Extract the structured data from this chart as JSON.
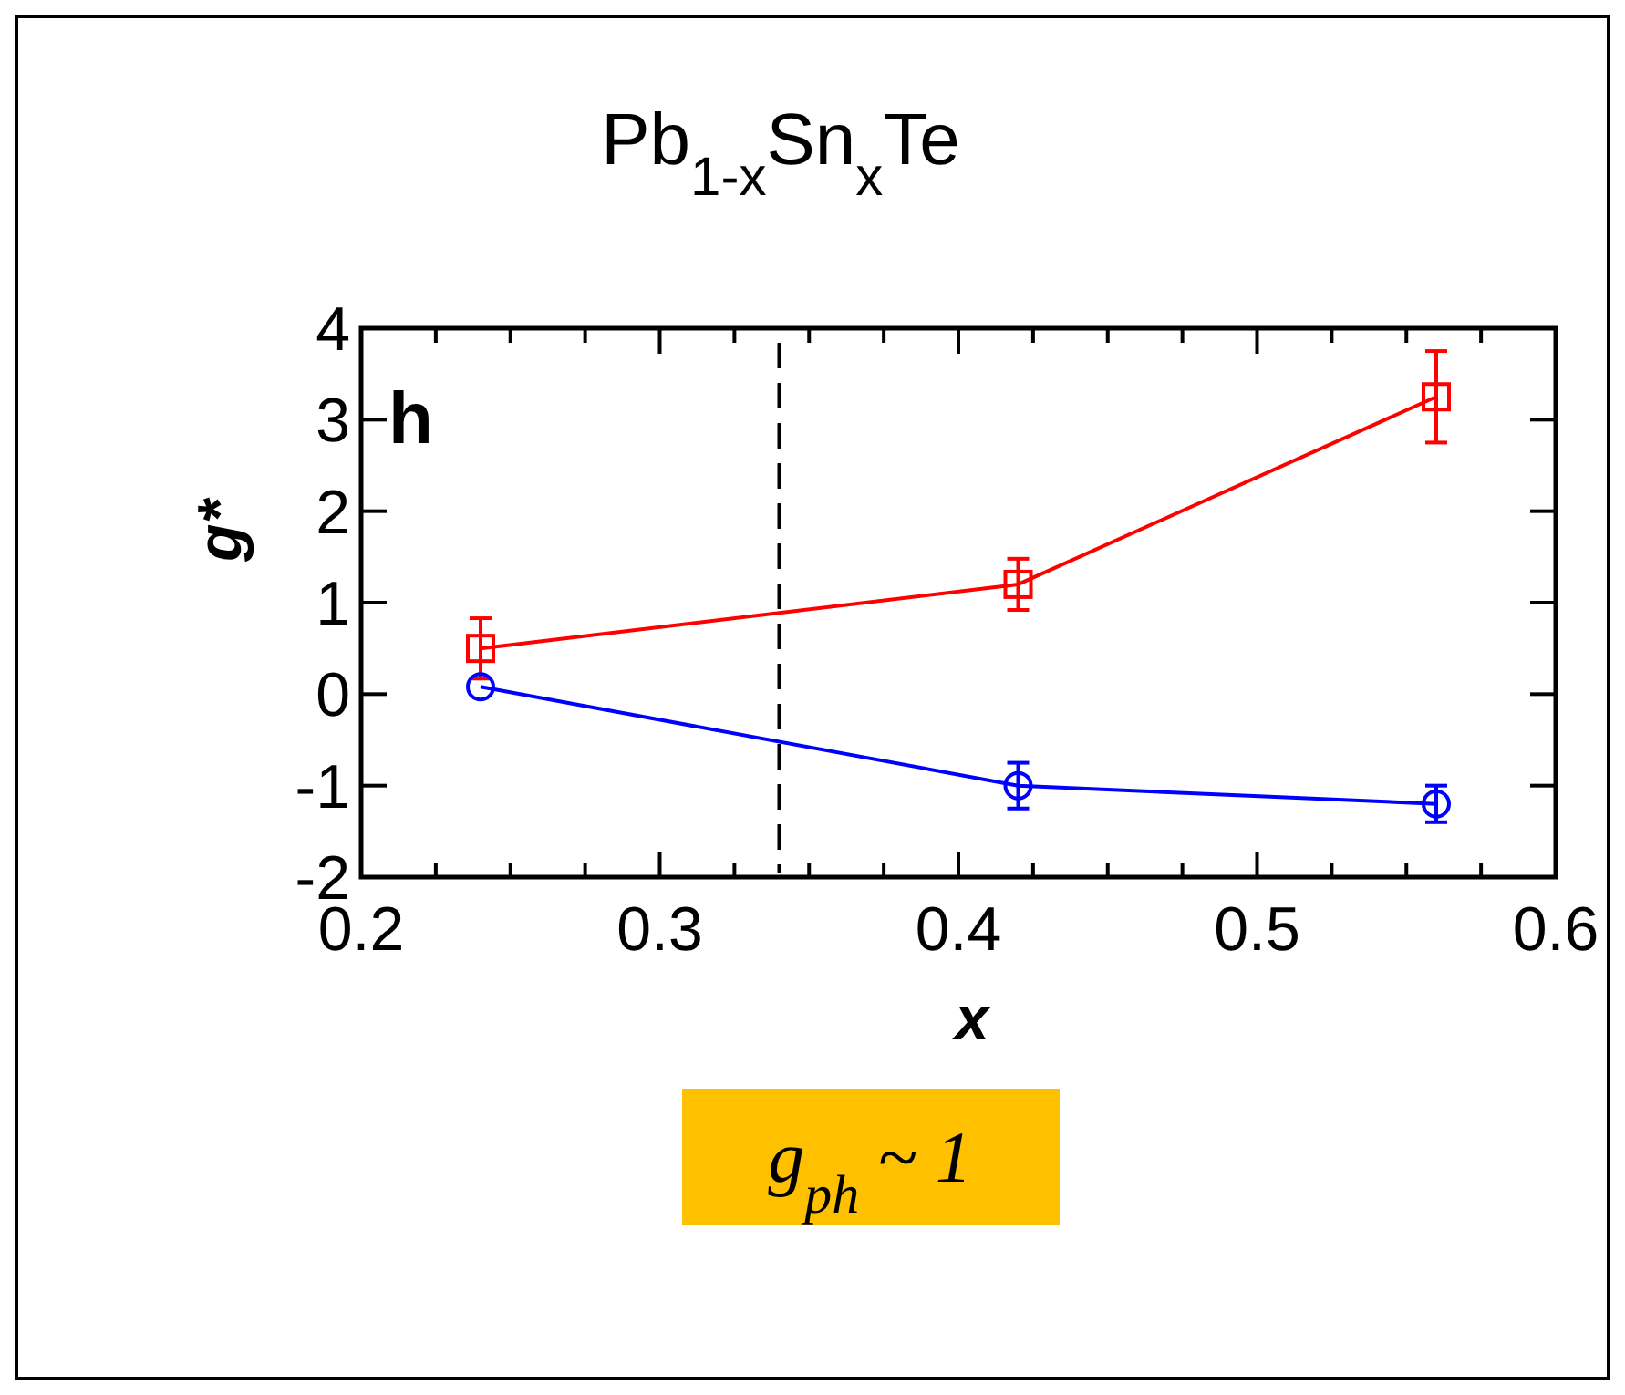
{
  "chart_data": {
    "type": "line",
    "title": "Pb$_{1-x}$Sn$_{x}$Te",
    "xlabel": "x",
    "ylabel": "g*",
    "annotations": [
      "h",
      "g$_{ph}$ ~ 1"
    ],
    "x": [
      0.24,
      0.42,
      0.56
    ],
    "series": [
      {
        "color": "#ff0000",
        "values": [
          0.5,
          1.2,
          3.25
        ],
        "errors": [
          0.33,
          0.28,
          0.5
        ],
        "marker": "square"
      },
      {
        "color": "#0000ff",
        "values": [
          0.08,
          -1.0,
          -1.2
        ],
        "errors": [
          null,
          0.25,
          0.2
        ],
        "marker": "circle"
      }
    ],
    "xlim": [
      0.2,
      0.6
    ],
    "xticks": [
      0.2,
      {
        "value": 0.225,
        "label": null
      },
      {
        "value": 0.25,
        "label": null
      },
      {
        "value": 0.275,
        "label": null
      },
      0.3,
      {
        "value": 0.325,
        "label": null
      },
      {
        "value": 0.35,
        "label": null
      },
      {
        "value": 0.375,
        "label": null
      },
      0.4,
      {
        "value": 0.425,
        "label": null
      },
      {
        "value": 0.45,
        "label": null
      },
      {
        "value": 0.475,
        "label": null
      },
      0.5,
      {
        "value": 0.525,
        "label": null
      },
      {
        "value": 0.55,
        "label": null
      },
      {
        "value": 0.575,
        "label": null
      },
      0.6
    ],
    "ylim": [
      -2,
      4
    ],
    "yticks": [
      -2,
      -1,
      0,
      1,
      2,
      3,
      4
    ],
    "ref_lines": [
      {
        "axis": "x",
        "value": 0.34,
        "line_style": "dashed",
        "color": "#000000"
      }
    ],
    "grid": false,
    "line_style": "solid"
  }
}
